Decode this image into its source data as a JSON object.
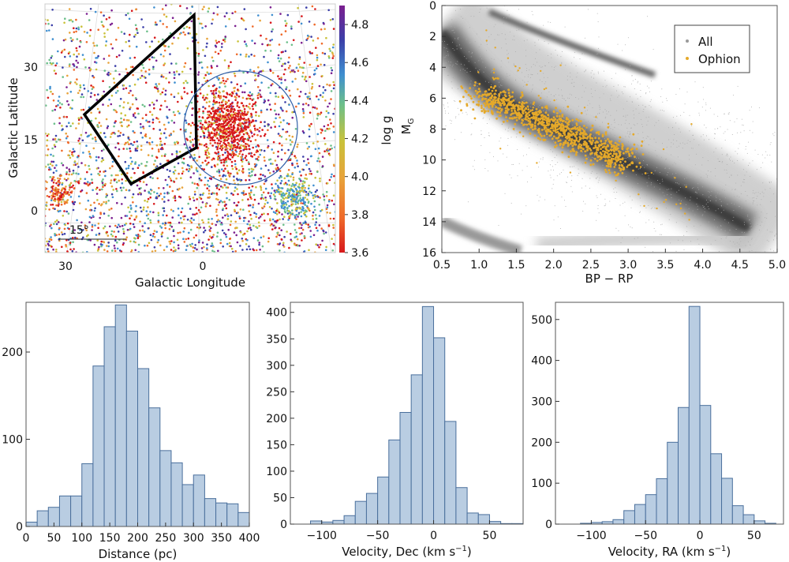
{
  "chart_data": [
    {
      "type": "scatter",
      "xlabel": "Galactic Longitude",
      "ylabel": "Galactic Latitude",
      "xticks": [
        "30",
        "0"
      ],
      "yticks": [
        "30",
        "15",
        "0"
      ],
      "scale_bar_label": "15°",
      "colorbar": {
        "label": "log g",
        "ticks": [
          "4.8",
          "4.6",
          "4.4",
          "4.2",
          "4.0",
          "3.8",
          "3.6"
        ],
        "range": [
          3.6,
          4.9
        ],
        "colors": [
          "#d7191c",
          "#ef6a2a",
          "#e8a33a",
          "#c9c23a",
          "#6cbf8a",
          "#3f8fd0",
          "#3b3fa8",
          "#7b1f8f"
        ]
      },
      "overlays": {
        "polygon_color": "#000000",
        "circle_color": "#2f5fa8"
      }
    },
    {
      "type": "scatter",
      "xlabel": "BP − RP",
      "ylabel": "M",
      "ylabel_sub": "G",
      "xlim": [
        0.5,
        5.0
      ],
      "ylim": [
        16,
        0
      ],
      "xticks": [
        "0.5",
        "1.0",
        "1.5",
        "2.0",
        "2.5",
        "3.0",
        "3.5",
        "4.0",
        "4.5",
        "5.0"
      ],
      "yticks": [
        "0",
        "2",
        "4",
        "6",
        "8",
        "10",
        "12",
        "14",
        "16"
      ],
      "legend": {
        "position": "top-right",
        "entries": [
          {
            "name": "All",
            "color": "#9a9a9a"
          },
          {
            "name": "Ophion",
            "color": "#e5a92a"
          }
        ]
      }
    },
    {
      "type": "bar",
      "xlabel": "Distance (pc)",
      "ylabel": "",
      "bin_edges_start": [
        0,
        20,
        40,
        60,
        80,
        100,
        120,
        140,
        160,
        180,
        200,
        220,
        240,
        260,
        280,
        300,
        320,
        340,
        360,
        380
      ],
      "bin_width": 20,
      "values": [
        5,
        18,
        22,
        35,
        35,
        72,
        184,
        229,
        254,
        224,
        181,
        136,
        87,
        73,
        48,
        59,
        32,
        27,
        26,
        16
      ],
      "xlim": [
        0,
        400
      ],
      "ylim": [
        0,
        257
      ],
      "xticks": [
        "0",
        "50",
        "100",
        "150",
        "200",
        "250",
        "300",
        "350",
        "400"
      ],
      "yticks": [
        "0",
        "100",
        "200"
      ],
      "color": "#b9cde2"
    },
    {
      "type": "bar",
      "xlabel": "Velocity, Dec (km s",
      "xlabel_sup": "−1",
      "xlabel_end": ")",
      "bin_edges_start": [
        -110,
        -100,
        -90,
        -80,
        -70,
        -60,
        -50,
        -40,
        -30,
        -20,
        -10,
        0,
        10,
        20,
        30,
        40,
        50,
        60,
        70
      ],
      "bin_width": 10,
      "values": [
        6,
        4,
        7,
        16,
        43,
        58,
        89,
        159,
        211,
        282,
        411,
        352,
        194,
        69,
        21,
        18,
        5,
        1,
        1
      ],
      "xlim": [
        -128,
        80
      ],
      "ylim": [
        0,
        419
      ],
      "xticks": [
        "−100",
        "−50",
        "0",
        "50"
      ],
      "yticks": [
        "0",
        "50",
        "100",
        "150",
        "200",
        "250",
        "300",
        "350",
        "400"
      ],
      "color": "#b9cde2"
    },
    {
      "type": "bar",
      "xlabel": "Velocity, RA (km s",
      "xlabel_sup": "−1",
      "xlabel_end": ")",
      "bin_edges_start": [
        -110,
        -100,
        -90,
        -80,
        -70,
        -60,
        -50,
        -40,
        -30,
        -20,
        -10,
        0,
        10,
        20,
        30,
        40,
        50,
        60
      ],
      "bin_width": 10,
      "values": [
        2,
        4,
        6,
        11,
        33,
        48,
        72,
        111,
        200,
        285,
        532,
        290,
        172,
        112,
        45,
        23,
        8,
        2
      ],
      "xlim": [
        -133,
        77
      ],
      "ylim": [
        0,
        542
      ],
      "xticks": [
        "−100",
        "−50",
        "0",
        "50"
      ],
      "yticks": [
        "0",
        "100",
        "200",
        "300",
        "400",
        "500"
      ],
      "color": "#b9cde2"
    }
  ]
}
